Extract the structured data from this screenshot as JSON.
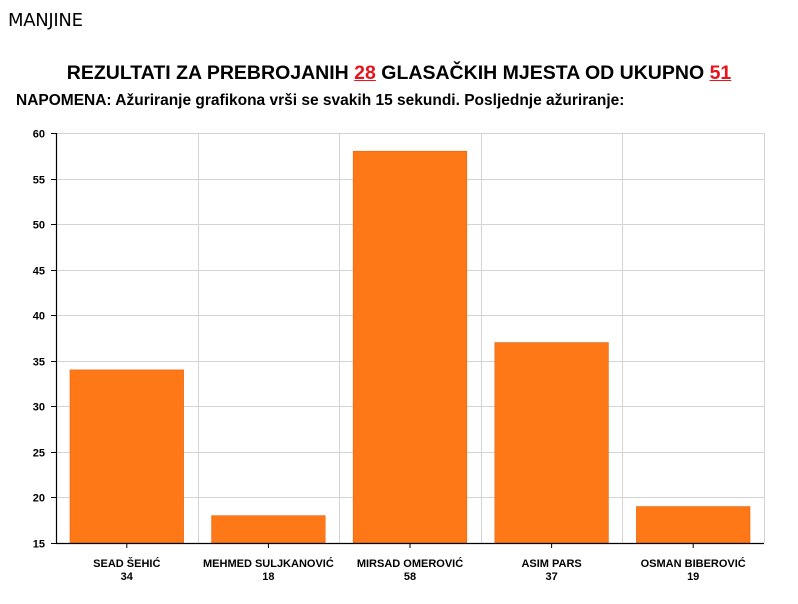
{
  "page": {
    "section_title": "MANJINE",
    "headline": {
      "prefix": "REZULTATI ZA PREBROJANIH ",
      "counted": "28",
      "middle": " GLASAČKIH MJESTA OD UKUPNO ",
      "total": "51",
      "suffix": " "
    },
    "note": "NAPOMENA: Ažuriranje grafikona vrši se svakih 15 sekundi. Posljednje ažuriranje:"
  },
  "colors": {
    "bar": "#ff7818",
    "bar_border": "#e8650c",
    "highlight_number": "#e8141b",
    "grid": "#d4d4d4",
    "axis": "#000000"
  },
  "chart_data": {
    "type": "bar",
    "title": "REZULTATI ZA PREBROJANIH 28 GLASAČKIH MJESTA OD UKUPNO 51",
    "xlabel": "",
    "ylabel": "",
    "categories": [
      "SEAD ŠEHIĆ",
      "MEHMED SULJKANOVIĆ",
      "MIRSAD OMEROVIĆ",
      "ASIM PARS",
      "OSMAN BIBEROVIĆ"
    ],
    "values": [
      34,
      18,
      58,
      37,
      19
    ],
    "value_labels": [
      "34",
      "18",
      "58",
      "37",
      "19"
    ],
    "ylim": [
      15,
      60
    ],
    "yticks": [
      15,
      20,
      25,
      30,
      35,
      40,
      45,
      50,
      55,
      60
    ],
    "grid": true,
    "legend": "none"
  }
}
